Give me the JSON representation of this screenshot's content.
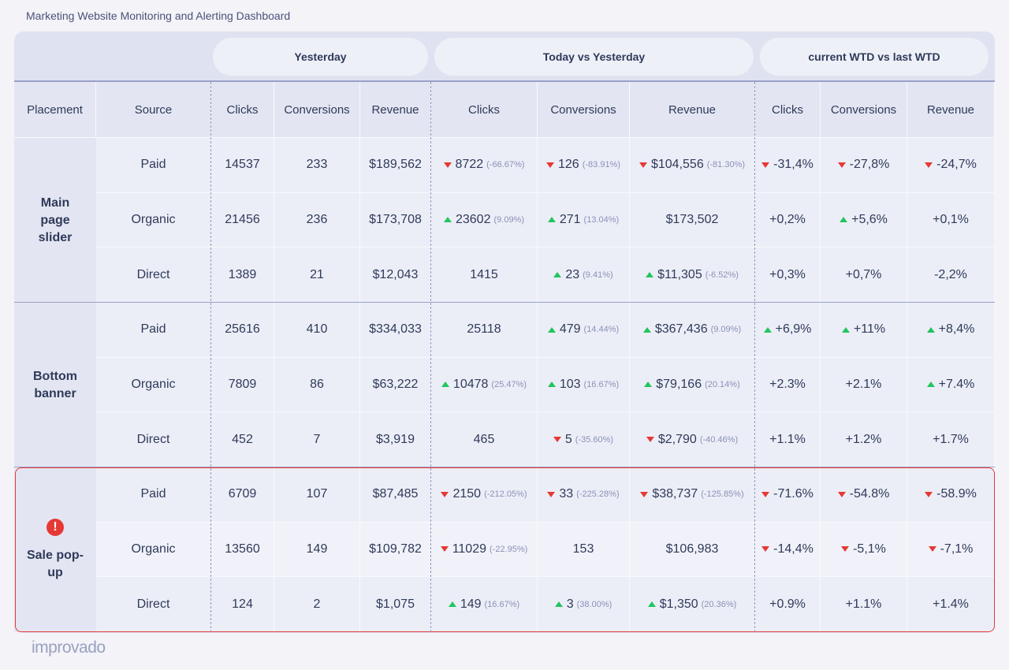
{
  "title": "Marketing Website Monitoring and Alerting Dashboard",
  "groups": [
    "Yesterday",
    "Today vs Yesterday",
    "current WTD vs last WTD"
  ],
  "columns": [
    "Placement",
    "Source",
    "Clicks",
    "Conversions",
    "Revenue",
    "Clicks",
    "Conversions",
    "Revenue",
    "Clicks",
    "Conversions",
    "Revenue"
  ],
  "placements": [
    {
      "label": "Main page slider",
      "rows": [
        {
          "source": "Paid",
          "cells": [
            "14537",
            "233",
            "$189,562",
            {
              "value": "8722",
              "change": "(-66.67%)",
              "trend": "down"
            },
            {
              "value": "126",
              "change": "(-83.91%)",
              "trend": "down"
            },
            {
              "value": "$104,556",
              "change": "(-81.30%)",
              "trend": "down"
            },
            {
              "value": "-31,4%",
              "trend": "down"
            },
            {
              "value": "-27,8%",
              "trend": "down"
            },
            {
              "value": "-24,7%",
              "trend": "down"
            }
          ]
        },
        {
          "source": "Organic",
          "cells": [
            "21456",
            "236",
            "$173,708",
            {
              "value": "23602",
              "change": "(9.09%)",
              "trend": "up"
            },
            {
              "value": "271",
              "change": "(13.04%)",
              "trend": "up"
            },
            {
              "value": "$173,502"
            },
            {
              "value": "+0,2%"
            },
            {
              "value": "+5,6%",
              "trend": "up"
            },
            {
              "value": "+0,1%"
            }
          ]
        },
        {
          "source": "Direct",
          "cells": [
            "1389",
            "21",
            "$12,043",
            {
              "value": "1415"
            },
            {
              "value": "23",
              "change": "(9.41%)",
              "trend": "up"
            },
            {
              "value": "$11,305",
              "change": "(-6.52%)",
              "trend": "up"
            },
            {
              "value": "+0,3%"
            },
            {
              "value": "+0,7%"
            },
            {
              "value": "-2,2%"
            }
          ]
        }
      ]
    },
    {
      "label": "Bottom banner",
      "rows": [
        {
          "source": "Paid",
          "cells": [
            "25616",
            "410",
            "$334,033",
            {
              "value": "25118"
            },
            {
              "value": "479",
              "change": "(14.44%)",
              "trend": "up"
            },
            {
              "value": "$367,436",
              "change": "(9.09%)",
              "trend": "up"
            },
            {
              "value": "+6,9%",
              "trend": "up"
            },
            {
              "value": "+11%",
              "trend": "up"
            },
            {
              "value": "+8,4%",
              "trend": "up"
            }
          ]
        },
        {
          "source": "Organic",
          "cells": [
            "7809",
            "86",
            "$63,222",
            {
              "value": "10478",
              "change": "(25.47%)",
              "trend": "up"
            },
            {
              "value": "103",
              "change": "(16.67%)",
              "trend": "up"
            },
            {
              "value": "$79,166",
              "change": "(20.14%)",
              "trend": "up"
            },
            {
              "value": "+2.3%"
            },
            {
              "value": "+2.1%"
            },
            {
              "value": "+7.4%",
              "trend": "up"
            }
          ]
        },
        {
          "source": "Direct",
          "cells": [
            "452",
            "7",
            "$3,919",
            {
              "value": "465"
            },
            {
              "value": "5",
              "change": "(-35.60%)",
              "trend": "down"
            },
            {
              "value": "$2,790",
              "change": "(-40.46%)",
              "trend": "down"
            },
            {
              "value": "+1.1%"
            },
            {
              "value": "+1.2%"
            },
            {
              "value": "+1.7%"
            }
          ]
        }
      ]
    },
    {
      "label": "Sale pop-up",
      "alert": true,
      "rows": [
        {
          "source": "Paid",
          "cells": [
            "6709",
            "107",
            "$87,485",
            {
              "value": "2150",
              "change": "(-212.05%)",
              "trend": "down"
            },
            {
              "value": "33",
              "change": "(-225.28%)",
              "trend": "down"
            },
            {
              "value": "$38,737",
              "change": "(-125.85%)",
              "trend": "down"
            },
            {
              "value": "-71.6%",
              "trend": "down"
            },
            {
              "value": "-54.8%",
              "trend": "down"
            },
            {
              "value": "-58.9%",
              "trend": "down"
            }
          ]
        },
        {
          "source": "Organic",
          "cells": [
            "13560",
            "149",
            "$109,782",
            {
              "value": "11029",
              "change": "(-22.95%)",
              "trend": "down"
            },
            {
              "value": "153"
            },
            {
              "value": "$106,983"
            },
            {
              "value": "-14,4%",
              "trend": "down"
            },
            {
              "value": "-5,1%",
              "trend": "down"
            },
            {
              "value": "-7,1%",
              "trend": "down"
            }
          ]
        },
        {
          "source": "Direct",
          "cells": [
            "124",
            "2",
            "$1,075",
            {
              "value": "149",
              "change": "(16.67%)",
              "trend": "up"
            },
            {
              "value": "3",
              "change": "(38.00%)",
              "trend": "up"
            },
            {
              "value": "$1,350",
              "change": "(20.36%)",
              "trend": "up"
            },
            {
              "value": "+0.9%"
            },
            {
              "value": "+1.1%"
            },
            {
              "value": "+1.4%"
            }
          ]
        }
      ]
    }
  ],
  "logo": "improvado"
}
